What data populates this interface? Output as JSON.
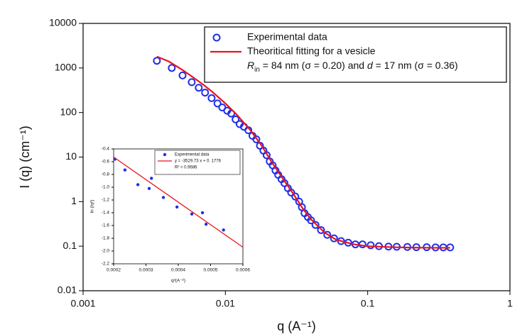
{
  "chart_data": [
    {
      "type": "scatter",
      "xlabel": "q (A⁻¹)",
      "ylabel": "I (q) (cm⁻¹)",
      "xscale": "log",
      "yscale": "log",
      "xlim": [
        0.001,
        1
      ],
      "ylim": [
        0.01,
        10000
      ],
      "xticks": [
        0.001,
        0.01,
        0.1,
        1
      ],
      "yticks": [
        0.01,
        0.1,
        1,
        10,
        100,
        1000,
        10000
      ],
      "annotation": [
        "R",
        "in",
        " = 84 nm (σ = 0.20) and ",
        "d",
        " = 17 nm (σ = 0.36)"
      ],
      "series": [
        {
          "name": "Experimental data",
          "kind": "marker",
          "color": "#1f2fe8",
          "x": [
            0.0033,
            0.0042,
            0.005,
            0.0058,
            0.0065,
            0.0072,
            0.008,
            0.0088,
            0.0095,
            0.0103,
            0.011,
            0.0118,
            0.0126,
            0.0135,
            0.0145,
            0.0155,
            0.0165,
            0.0175,
            0.0185,
            0.0195,
            0.0205,
            0.0215,
            0.0225,
            0.0235,
            0.0248,
            0.026,
            0.0275,
            0.029,
            0.031,
            0.033,
            0.0345,
            0.036,
            0.038,
            0.04,
            0.043,
            0.047,
            0.052,
            0.058,
            0.065,
            0.073,
            0.082,
            0.092,
            0.105,
            0.12,
            0.14,
            0.16,
            0.19,
            0.22,
            0.26,
            0.3,
            0.34,
            0.38
          ],
          "values": [
            1450,
            1000,
            680,
            480,
            360,
            280,
            210,
            160,
            130,
            110,
            95,
            70,
            55,
            48,
            40,
            30,
            25,
            18,
            14,
            11,
            8,
            6.5,
            5,
            4,
            3.2,
            2.6,
            2,
            1.6,
            1.3,
            1.0,
            0.75,
            0.55,
            0.45,
            0.38,
            0.3,
            0.23,
            0.18,
            0.15,
            0.13,
            0.12,
            0.11,
            0.11,
            0.105,
            0.1,
            0.098,
            0.097,
            0.096,
            0.095,
            0.095,
            0.094,
            0.094,
            0.094
          ]
        },
        {
          "name": "Theoritical fitting for a vesicle",
          "kind": "line",
          "color": "#e8141e",
          "x": [
            0.0033,
            0.004,
            0.005,
            0.006,
            0.007,
            0.008,
            0.01,
            0.012,
            0.015,
            0.018,
            0.021,
            0.025,
            0.03,
            0.035,
            0.04,
            0.05,
            0.06,
            0.08,
            0.1,
            0.15,
            0.2,
            0.3,
            0.38
          ],
          "values": [
            1800,
            1400,
            900,
            600,
            420,
            300,
            160,
            90,
            40,
            18,
            8,
            3.5,
            1.5,
            0.7,
            0.4,
            0.2,
            0.14,
            0.11,
            0.1,
            0.095,
            0.093,
            0.092,
            0.092
          ]
        }
      ]
    },
    {
      "type": "scatter",
      "xlabel": "q²(A⁻²)",
      "ylabel": "ln (Iq²)",
      "xlim": [
        0.0002,
        0.0006
      ],
      "ylim": [
        -2.2,
        -0.4
      ],
      "xticks": [
        0.0002,
        0.0003,
        0.0004,
        0.0005,
        0.0006
      ],
      "yticks": [
        -2.2,
        {
          "value": -2,
          "label": "-2.0"
        },
        -1.8,
        -1.6,
        -1.4,
        -1.2,
        {
          "value": -1,
          "label": "-1.0"
        },
        -0.8,
        -0.6,
        -0.4
      ],
      "annotation": "R² = 0.9686",
      "series": [
        {
          "name": "Experimental data",
          "kind": "marker",
          "color": "#1f2fe8",
          "x": [
            0.000204,
            0.000235,
            0.000275,
            0.00031,
            0.000317,
            0.000354,
            0.000396,
            0.000442,
            0.000475,
            0.000486,
            0.00054
          ],
          "values": [
            -0.56,
            -0.73,
            -0.96,
            -1.02,
            -0.86,
            -1.16,
            -1.31,
            -1.42,
            -1.4,
            -1.58,
            -1.67
          ]
        },
        {
          "name": "y = -3529.73 x + 0. 1776",
          "kind": "line",
          "color": "#e8141e",
          "x": [
            0.0002,
            0.0006
          ],
          "values": [
            -0.528,
            -1.94
          ]
        }
      ]
    }
  ]
}
